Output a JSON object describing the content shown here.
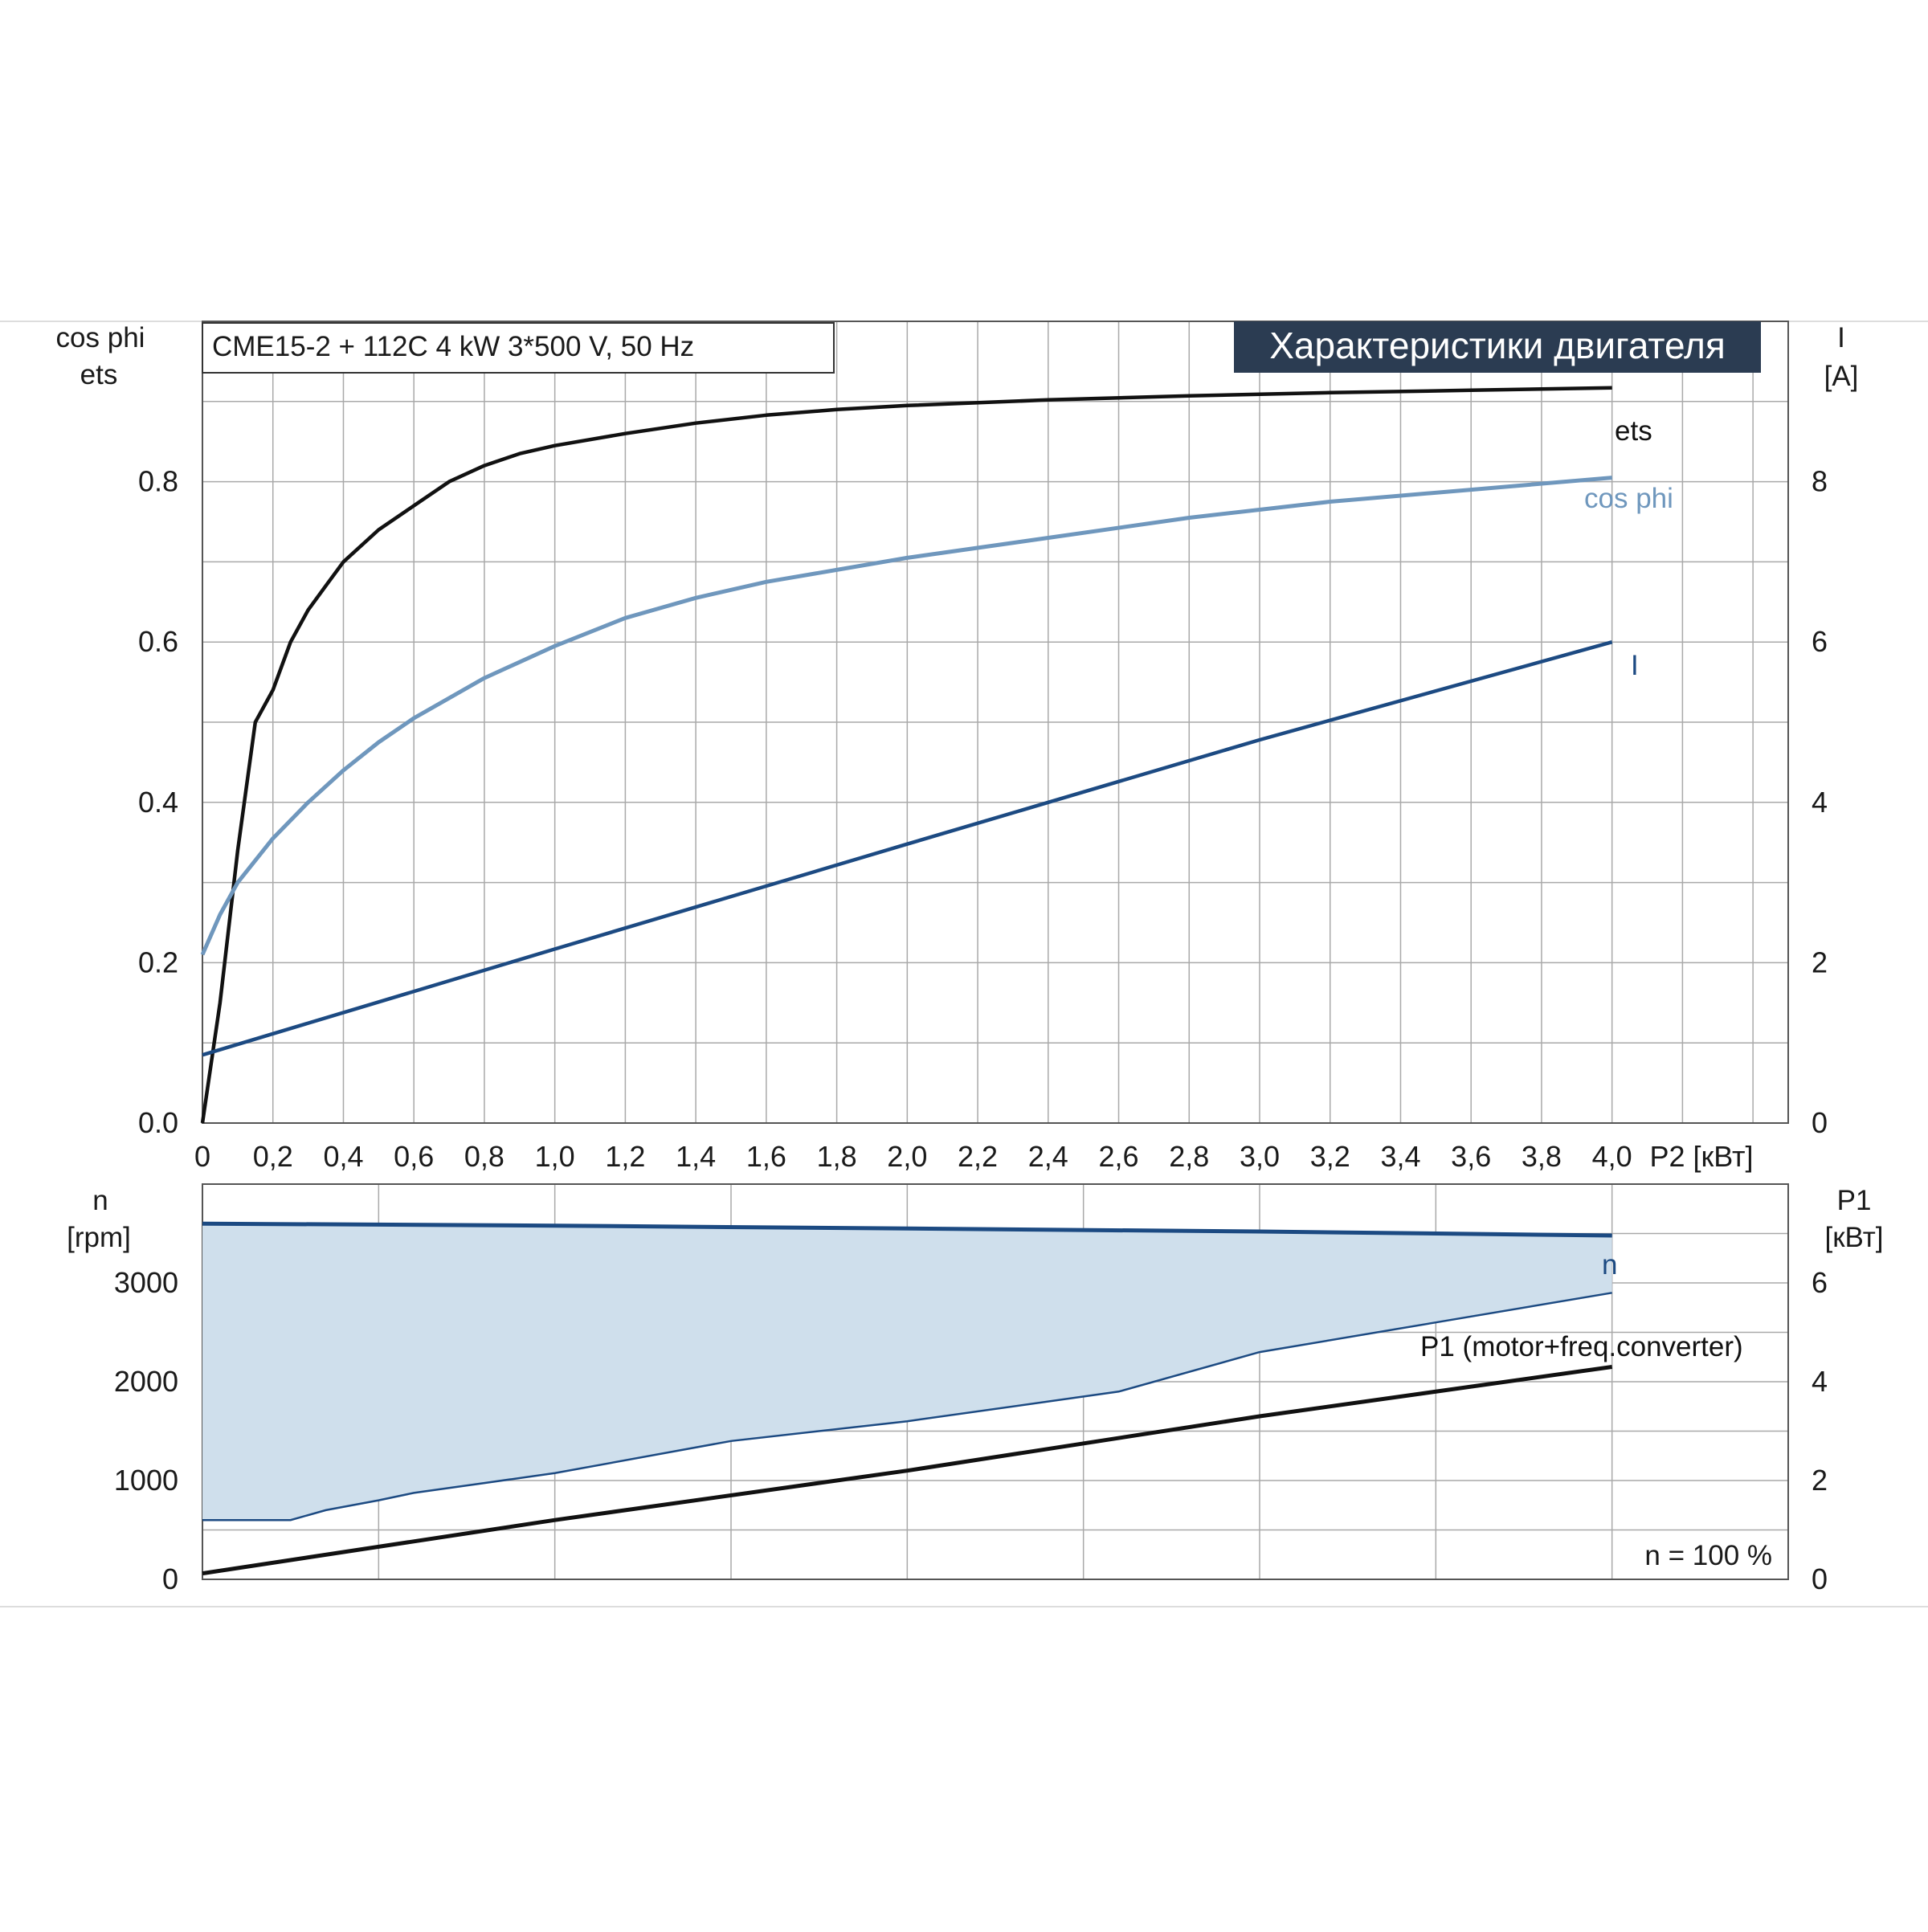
{
  "header": {
    "model_info": "CME15-2 + 112C   4 kW   3*500 V, 50 Hz",
    "banner": "Характеристики двигателя",
    "banner_color": "#2b3c52"
  },
  "speed_note": "n = 100 %",
  "colors": {
    "ets": "#111111",
    "cos_phi": "#6f97bd",
    "current": "#1c4a82",
    "speed": "#1c4a82",
    "p1": "#111111",
    "band_fill": "#cfdfec",
    "grid": "#a9a9a9"
  },
  "chart_data": [
    {
      "type": "line",
      "xlabel": "P2 [кВт]",
      "x_ticks": [
        "0",
        "0,2",
        "0,4",
        "0,6",
        "0,8",
        "1,0",
        "1,2",
        "1,4",
        "1,6",
        "1,8",
        "2,0",
        "2,2",
        "2,4",
        "2,6",
        "2,8",
        "3,0",
        "3,2",
        "3,4",
        "3,6",
        "3,8",
        "4,0"
      ],
      "xlim": [
        0,
        4.5
      ],
      "ylabel_left": [
        "cos phi",
        "ets"
      ],
      "ylim_left": [
        0,
        1.0
      ],
      "y_ticks_left": [
        "0.0",
        "0.2",
        "0.4",
        "0.6",
        "0.8"
      ],
      "ylabel_right": [
        "I",
        "[A]"
      ],
      "ylim_right": [
        0,
        10
      ],
      "y_ticks_right": [
        "0",
        "2",
        "4",
        "6",
        "8"
      ],
      "grid": true,
      "series": [
        {
          "name": "ets",
          "axis": "left",
          "x": [
            0,
            0.05,
            0.1,
            0.15,
            0.2,
            0.25,
            0.3,
            0.35,
            0.4,
            0.5,
            0.6,
            0.7,
            0.8,
            0.9,
            1.0,
            1.2,
            1.4,
            1.6,
            1.8,
            2.0,
            2.4,
            2.8,
            3.2,
            3.6,
            4.0
          ],
          "y": [
            0.0,
            0.15,
            0.34,
            0.5,
            0.54,
            0.6,
            0.64,
            0.67,
            0.7,
            0.74,
            0.77,
            0.8,
            0.82,
            0.835,
            0.845,
            0.86,
            0.873,
            0.883,
            0.89,
            0.895,
            0.902,
            0.907,
            0.911,
            0.914,
            0.917
          ]
        },
        {
          "name": "cos phi",
          "axis": "left",
          "x": [
            0,
            0.05,
            0.1,
            0.2,
            0.3,
            0.4,
            0.5,
            0.6,
            0.8,
            1.0,
            1.2,
            1.4,
            1.6,
            1.8,
            2.0,
            2.4,
            2.8,
            3.2,
            3.6,
            4.0
          ],
          "y": [
            0.21,
            0.26,
            0.3,
            0.355,
            0.4,
            0.44,
            0.475,
            0.505,
            0.555,
            0.595,
            0.63,
            0.655,
            0.675,
            0.69,
            0.705,
            0.73,
            0.755,
            0.775,
            0.79,
            0.805
          ]
        },
        {
          "name": "I",
          "axis": "right",
          "x": [
            0,
            1.0,
            2.0,
            3.0,
            4.0
          ],
          "y": [
            0.85,
            2.17,
            3.48,
            4.78,
            6.0
          ]
        }
      ]
    },
    {
      "type": "line",
      "xlim": [
        0,
        4.5
      ],
      "ylabel_left": [
        "n",
        "[rpm]"
      ],
      "ylim_left": [
        0,
        4000
      ],
      "y_ticks_left": [
        "0",
        "1000",
        "2000",
        "3000"
      ],
      "ylabel_right": [
        "P1",
        "[кВт]"
      ],
      "ylim_right": [
        0,
        8
      ],
      "y_ticks_right": [
        "0",
        "2",
        "4",
        "6"
      ],
      "grid": true,
      "series": [
        {
          "name": "n",
          "axis": "left",
          "x": [
            0,
            1.0,
            2.0,
            3.0,
            4.0
          ],
          "y": [
            3600,
            3580,
            3550,
            3520,
            3480
          ]
        },
        {
          "name": "P1 (motor+freq.converter)",
          "axis": "right",
          "x": [
            0,
            1.0,
            2.0,
            3.0,
            4.0
          ],
          "y": [
            0.12,
            1.2,
            2.2,
            3.3,
            4.3
          ]
        }
      ],
      "operating_band": {
        "x": [
          0,
          0.25,
          0.35,
          0.5,
          0.6,
          0.8,
          1.0,
          1.5,
          2.0,
          2.6,
          3.0,
          3.5,
          4.0
        ],
        "y": [
          1.2,
          1.2,
          1.4,
          1.6,
          1.75,
          1.95,
          2.15,
          2.8,
          3.2,
          3.8,
          4.6,
          5.2,
          5.8
        ]
      }
    }
  ]
}
